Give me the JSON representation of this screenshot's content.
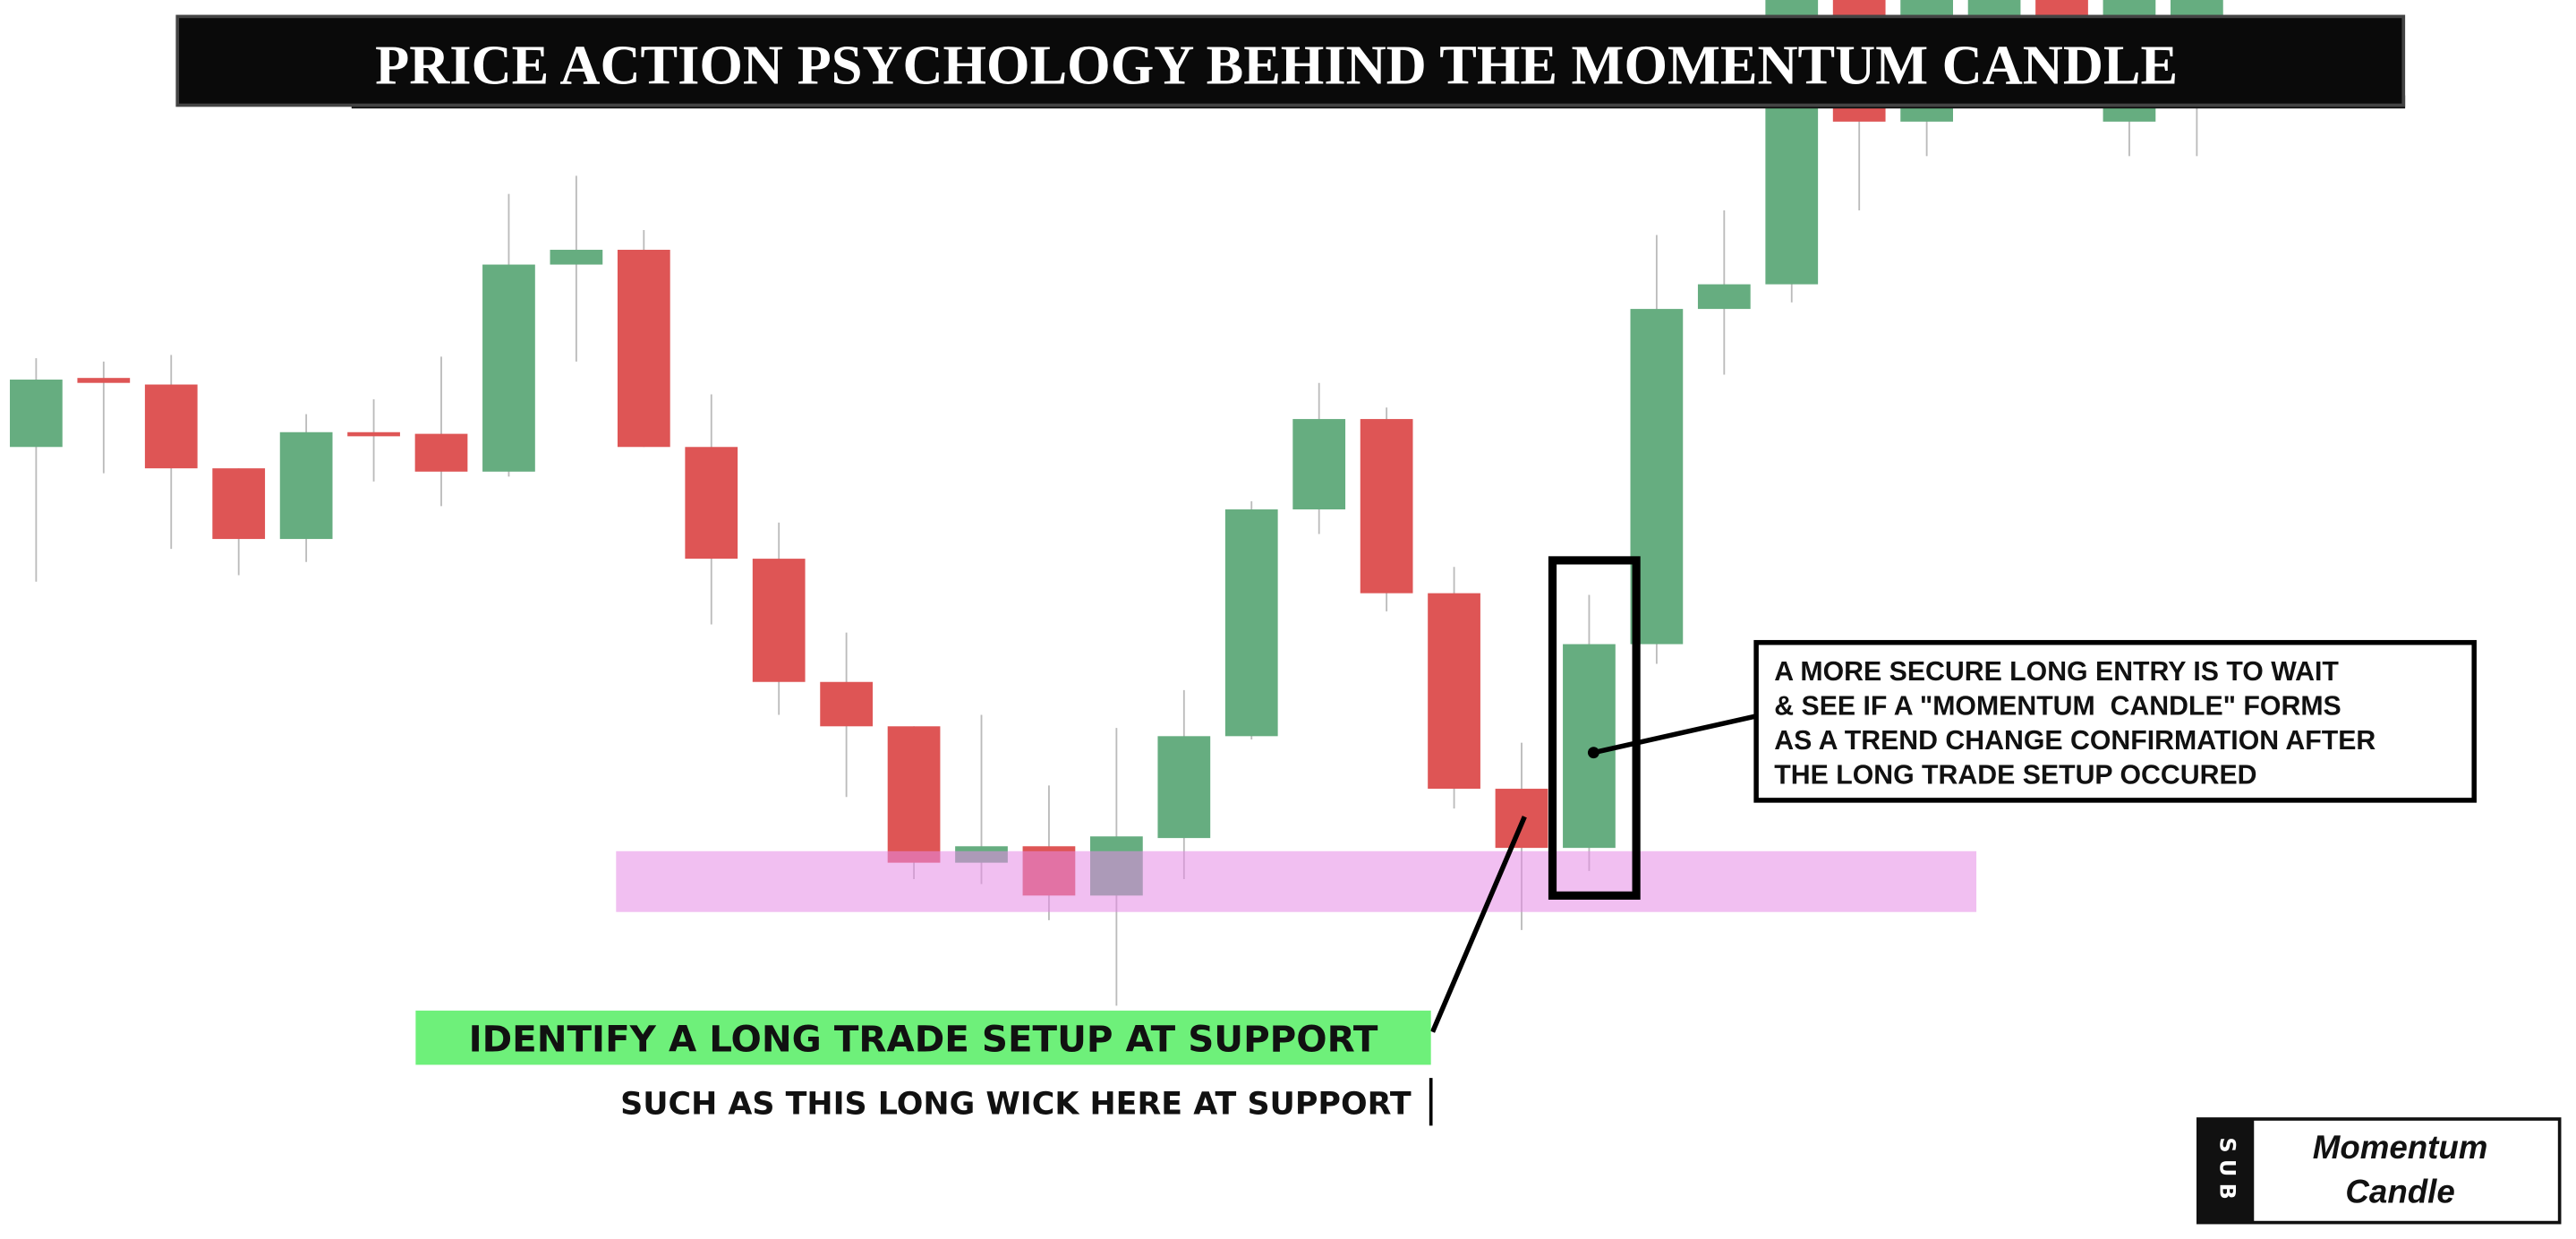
{
  "chart_data": {
    "type": "candlestick",
    "title": "PRICE ACTION PSYCHOLOGY BEHIND THE MOMENTUM CANDLE",
    "categories": [
      null,
      null,
      null,
      null,
      null,
      null,
      null,
      null,
      null,
      null,
      null,
      null,
      null,
      null,
      null,
      null,
      null,
      null,
      null,
      null,
      null,
      null,
      null,
      null,
      null,
      null,
      null,
      null,
      null,
      null,
      null,
      null,
      null
    ],
    "open": [
      482,
      524,
      520,
      469,
      426,
      491,
      490,
      467,
      593,
      602,
      482,
      414,
      339,
      312,
      229,
      239,
      209,
      244,
      306,
      444,
      499,
      393,
      274,
      238,
      362,
      566,
      581,
      780,
      680,
      744,
      790,
      680,
      744
    ],
    "high": [
      536,
      534,
      538,
      469,
      502,
      511,
      537,
      636,
      647,
      614,
      514,
      436,
      369,
      312,
      319,
      276,
      311,
      334,
      449,
      521,
      506,
      409,
      302,
      392,
      611,
      626,
      800,
      800,
      800,
      800,
      800,
      800,
      800
    ],
    "low": [
      400,
      466,
      420,
      404,
      412,
      461,
      446,
      464,
      534,
      482,
      374,
      319,
      269,
      219,
      216,
      194,
      142,
      219,
      304,
      429,
      382,
      262,
      188,
      224,
      350,
      526,
      570,
      626,
      659,
      740,
      740,
      659,
      659
    ],
    "close": [
      523,
      521,
      469,
      426,
      491,
      489,
      467,
      593,
      602,
      482,
      414,
      339,
      312,
      229,
      239,
      209,
      245,
      306,
      444,
      499,
      393,
      274,
      238,
      362,
      566,
      581,
      780,
      680,
      760,
      790,
      744,
      790,
      790
    ],
    "up_color": "#66ad80",
    "down_color": "#de5555",
    "ylim": [
      0,
      754
    ],
    "annotations": {
      "setup": "IDENTIFY A LONG TRADE SETUP AT SUPPORT",
      "setup_detail": "SUCH AS THIS LONG WICK HERE AT SUPPORT",
      "entry": [
        "A MORE SECURE LONG ENTRY IS TO WAIT",
        "& SEE IF A \"MOMENTUM  CANDLE\" FORMS",
        "AS A TREND CHANGE CONFIRMATION AFTER",
        "THE LONG TRADE SETUP OCCURED"
      ]
    },
    "badge": {
      "logo": "SUB",
      "lines": [
        "Momentum",
        "Candle"
      ]
    }
  }
}
